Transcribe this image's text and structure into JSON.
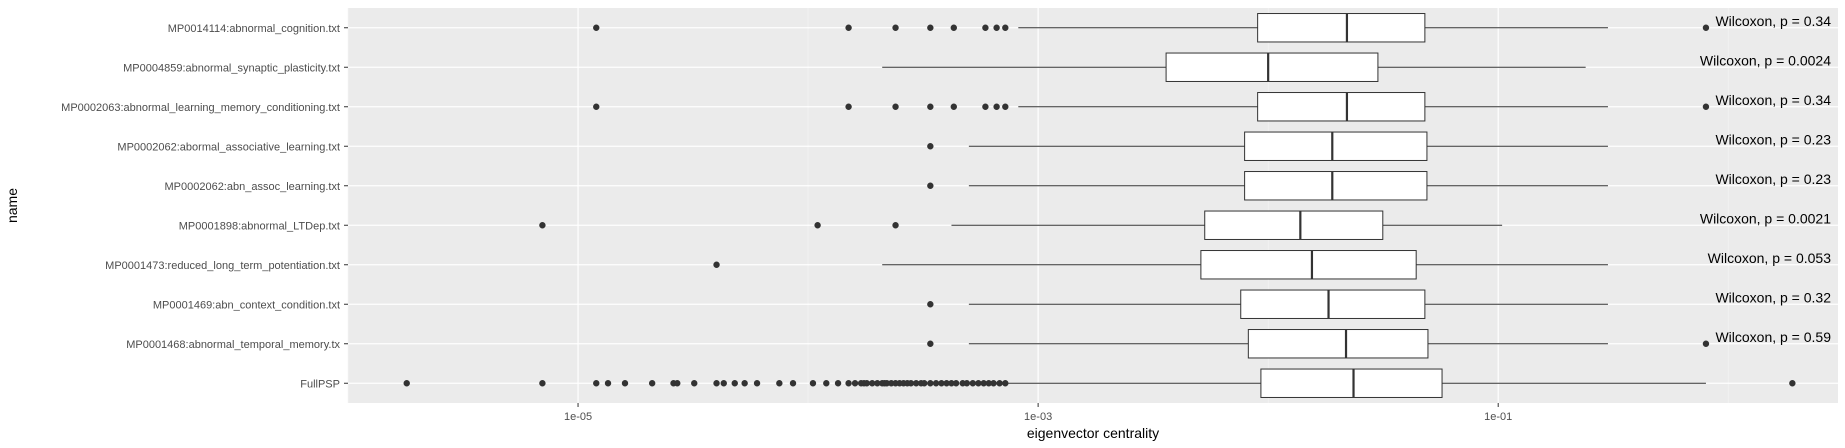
{
  "chart_data": {
    "type": "boxplot",
    "orientation": "horizontal",
    "xlabel": "eigenvector centrality",
    "ylabel": "name",
    "x_scale": "log10",
    "xlim": [
      1e-06,
      3
    ],
    "x_ticks": [
      1e-05,
      0.001,
      0.1
    ],
    "x_tick_labels": [
      "1e-05",
      "1e-03",
      "1e-01"
    ],
    "grid": true,
    "legend": "none",
    "colors": {
      "panel": "#ebebeb",
      "grid_major": "#ffffff",
      "grid_minor": "#f5f5f5",
      "box_fill": "#ffffff",
      "stroke": "#333333"
    },
    "categories": [
      {
        "name": "MP0014114:abnormal_cognition.txt",
        "annotation": "Wilcoxon, p = 0.34",
        "box": {
          "whisker_low": 0.00082,
          "q1": 0.009,
          "median": 0.022,
          "q3": 0.048,
          "whisker_high": 0.3
        },
        "outliers": [
          1.2e-05,
          0.00015,
          0.00024,
          0.00034,
          0.00043,
          0.00059,
          0.00066,
          0.00072,
          0.8
        ]
      },
      {
        "name": "MP0004859:abnormal_synaptic_plasticity.txt",
        "annotation": "Wilcoxon, p = 0.0024",
        "box": {
          "whisker_low": 0.00021,
          "q1": 0.0036,
          "median": 0.01,
          "q3": 0.03,
          "whisker_high": 0.24
        },
        "outliers": []
      },
      {
        "name": "MP0002063:abnormal_learning_memory_conditioning.txt",
        "annotation": "Wilcoxon, p = 0.34",
        "box": {
          "whisker_low": 0.00082,
          "q1": 0.009,
          "median": 0.022,
          "q3": 0.048,
          "whisker_high": 0.3
        },
        "outliers": [
          1.2e-05,
          0.00015,
          0.00024,
          0.00034,
          0.00043,
          0.00059,
          0.00066,
          0.00072,
          0.8
        ]
      },
      {
        "name": "MP0002062:abormal_associative_learning.txt",
        "annotation": "Wilcoxon, p = 0.23",
        "box": {
          "whisker_low": 0.0005,
          "q1": 0.0079,
          "median": 0.019,
          "q3": 0.049,
          "whisker_high": 0.3
        },
        "outliers": [
          0.00034
        ]
      },
      {
        "name": "MP0002062:abn_assoc_learning.txt",
        "annotation": "Wilcoxon, p = 0.23",
        "box": {
          "whisker_low": 0.0005,
          "q1": 0.0079,
          "median": 0.019,
          "q3": 0.049,
          "whisker_high": 0.3
        },
        "outliers": [
          0.00034
        ]
      },
      {
        "name": "MP0001898:abnormal_LTDep.txt",
        "annotation": "Wilcoxon, p = 0.0021",
        "box": {
          "whisker_low": 0.00042,
          "q1": 0.0053,
          "median": 0.0138,
          "q3": 0.0315,
          "whisker_high": 0.104
        },
        "outliers": [
          7e-06,
          0.00011,
          0.00024
        ]
      },
      {
        "name": "MP0001473:reduced_long_term_potentiation.txt",
        "annotation": "Wilcoxon, p = 0.053",
        "box": {
          "whisker_low": 0.00021,
          "q1": 0.0051,
          "median": 0.0155,
          "q3": 0.044,
          "whisker_high": 0.3
        },
        "outliers": [
          4e-05
        ]
      },
      {
        "name": "MP0001469:abn_context_condition.txt",
        "annotation": "Wilcoxon, p = 0.32",
        "box": {
          "whisker_low": 0.0005,
          "q1": 0.0076,
          "median": 0.0183,
          "q3": 0.048,
          "whisker_high": 0.3
        },
        "outliers": [
          0.00034
        ]
      },
      {
        "name": "MP0001468:abnormal_temporal_memory.tx",
        "annotation": "Wilcoxon, p = 0.59",
        "box": {
          "whisker_low": 0.0005,
          "q1": 0.0082,
          "median": 0.0218,
          "q3": 0.0495,
          "whisker_high": 0.3
        },
        "outliers": [
          0.00034,
          0.8
        ]
      },
      {
        "name": "FullPSP",
        "annotation": "",
        "box": {
          "whisker_low": 0.00073,
          "q1": 0.0093,
          "median": 0.0235,
          "q3": 0.057,
          "whisker_high": 0.8
        },
        "outliers": [
          1.8e-06,
          7e-06,
          1.2e-05,
          1.35e-05,
          1.6e-05,
          2.1e-05,
          2.6e-05,
          2.7e-05,
          3.2e-05,
          4e-05,
          4.3e-05,
          4.8e-05,
          5.3e-05,
          6e-05,
          7.5e-05,
          8.6e-05,
          0.000105,
          0.00012,
          0.000135,
          0.00015,
          0.00016,
          0.00017,
          0.000175,
          0.00018,
          0.00019,
          0.0002,
          0.00021,
          0.000215,
          0.00022,
          0.00023,
          0.00024,
          0.00025,
          0.00026,
          0.00027,
          0.00028,
          0.000295,
          0.00031,
          0.00032,
          0.00034,
          0.00036,
          0.00038,
          0.0004,
          0.00042,
          0.00044,
          0.00047,
          0.00049,
          0.00052,
          0.00055,
          0.00058,
          0.00061,
          0.00064,
          0.00068,
          0.00072,
          1.9
        ]
      }
    ]
  }
}
